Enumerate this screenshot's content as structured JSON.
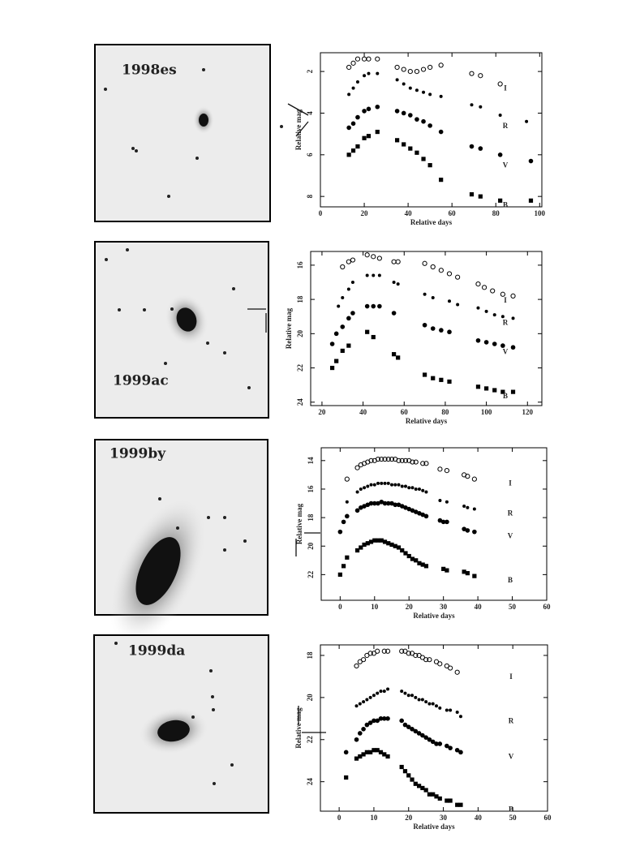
{
  "images": [
    {
      "label": "1998es"
    },
    {
      "label": "1999ac"
    },
    {
      "label": "1999by"
    },
    {
      "label": "1999da"
    }
  ],
  "chart_data": [
    {
      "type": "scatter",
      "xlabel": "Relative days",
      "ylabel": "Relative mag",
      "xlim": [
        0,
        101
      ],
      "ylim": [
        1.1,
        8.5
      ],
      "y_inverted": true,
      "xticks": [
        0,
        20,
        40,
        60,
        80,
        100
      ],
      "yticks": [
        2,
        4,
        6,
        8
      ],
      "series": [
        {
          "name": "I",
          "color": "#000000",
          "marker": "circle-open",
          "x": [
            13,
            15,
            17,
            20,
            22,
            26,
            35,
            38,
            41,
            44,
            47,
            50,
            55,
            69,
            73,
            82
          ],
          "values": [
            1.8,
            1.6,
            1.4,
            1.4,
            1.4,
            1.4,
            1.8,
            1.9,
            2.0,
            2.0,
            1.9,
            1.8,
            1.7,
            2.1,
            2.2,
            2.6
          ]
        },
        {
          "name": "R",
          "color": "#000000",
          "marker": "dot",
          "x": [
            13,
            15,
            17,
            20,
            22,
            26,
            35,
            38,
            41,
            44,
            47,
            50,
            55,
            69,
            73,
            82,
            94
          ],
          "values": [
            3.1,
            2.8,
            2.5,
            2.2,
            2.1,
            2.1,
            2.4,
            2.6,
            2.8,
            2.9,
            3.0,
            3.1,
            3.2,
            3.6,
            3.7,
            4.1,
            4.4
          ]
        },
        {
          "name": "V",
          "color": "#000000",
          "marker": "circle",
          "x": [
            13,
            15,
            17,
            20,
            22,
            26,
            35,
            38,
            41,
            44,
            47,
            50,
            55,
            69,
            73,
            82,
            96
          ],
          "values": [
            4.7,
            4.5,
            4.2,
            3.9,
            3.8,
            3.7,
            3.9,
            4.0,
            4.1,
            4.3,
            4.4,
            4.6,
            4.9,
            5.6,
            5.7,
            6.0,
            6.3
          ]
        },
        {
          "name": "B",
          "color": "#000000",
          "marker": "square",
          "x": [
            13,
            15,
            17,
            20,
            22,
            26,
            35,
            38,
            41,
            44,
            47,
            50,
            55,
            69,
            73,
            82,
            96
          ],
          "values": [
            6.0,
            5.8,
            5.6,
            5.2,
            5.1,
            4.9,
            5.3,
            5.5,
            5.7,
            5.9,
            6.2,
            6.5,
            7.2,
            7.9,
            8.0,
            8.2,
            8.2
          ]
        }
      ]
    },
    {
      "type": "scatter",
      "xlabel": "Relative days",
      "ylabel": "Relative mag",
      "xlim": [
        14.5,
        127
      ],
      "ylim": [
        15.2,
        24.2
      ],
      "y_inverted": true,
      "xticks": [
        20,
        40,
        60,
        80,
        100,
        120
      ],
      "yticks": [
        16,
        18,
        20,
        22,
        24
      ],
      "series": [
        {
          "name": "I",
          "color": "#000000",
          "marker": "circle-open",
          "x": [
            30,
            33,
            35,
            42,
            45,
            48,
            55,
            57,
            70,
            74,
            78,
            82,
            86,
            96,
            99,
            103,
            108,
            113
          ],
          "values": [
            16.1,
            15.8,
            15.7,
            15.4,
            15.5,
            15.6,
            15.8,
            15.8,
            15.9,
            16.1,
            16.3,
            16.5,
            16.7,
            17.1,
            17.3,
            17.5,
            17.7,
            17.8
          ]
        },
        {
          "name": "R",
          "color": "#000000",
          "marker": "dot",
          "x": [
            28,
            30,
            33,
            35,
            42,
            45,
            48,
            55,
            57,
            70,
            74,
            82,
            86,
            96,
            100,
            104,
            108,
            113
          ],
          "values": [
            18.4,
            17.9,
            17.4,
            17.0,
            16.6,
            16.6,
            16.6,
            17.0,
            17.1,
            17.7,
            17.9,
            18.1,
            18.3,
            18.5,
            18.7,
            18.9,
            19.0,
            19.1
          ]
        },
        {
          "name": "V",
          "color": "#000000",
          "marker": "circle",
          "x": [
            25,
            27,
            30,
            33,
            35,
            42,
            45,
            48,
            55,
            70,
            74,
            78,
            82,
            96,
            100,
            104,
            108,
            113
          ],
          "values": [
            20.6,
            20.0,
            19.6,
            19.1,
            18.8,
            18.4,
            18.4,
            18.4,
            18.8,
            19.5,
            19.7,
            19.8,
            19.9,
            20.4,
            20.5,
            20.6,
            20.7,
            20.8
          ]
        },
        {
          "name": "B",
          "color": "#000000",
          "marker": "square",
          "x": [
            25,
            27,
            30,
            33,
            42,
            45,
            55,
            57,
            70,
            74,
            78,
            82,
            96,
            100,
            104,
            108,
            113
          ],
          "values": [
            22.0,
            21.6,
            21.0,
            20.7,
            19.9,
            20.2,
            21.2,
            21.4,
            22.4,
            22.6,
            22.7,
            22.8,
            23.1,
            23.2,
            23.3,
            23.4,
            23.4
          ]
        }
      ]
    },
    {
      "type": "scatter",
      "xlabel": "Relative days",
      "ylabel": "Relative mag",
      "xlim": [
        -5.5,
        60
      ],
      "ylim": [
        13.1,
        23.8
      ],
      "y_inverted": true,
      "xticks": [
        0,
        10,
        20,
        30,
        40,
        50,
        60
      ],
      "yticks": [
        14,
        16,
        18,
        20,
        22
      ],
      "series": [
        {
          "name": "I",
          "color": "#000000",
          "marker": "circle-open",
          "x": [
            2,
            5,
            6,
            7,
            8,
            9,
            10,
            11,
            12,
            13,
            14,
            15,
            16,
            17,
            18,
            19,
            20,
            21,
            22,
            24,
            25,
            29,
            31,
            36,
            37,
            39
          ],
          "values": [
            15.3,
            14.5,
            14.3,
            14.2,
            14.1,
            14.0,
            14.0,
            13.9,
            13.9,
            13.9,
            13.9,
            13.9,
            13.9,
            14.0,
            14.0,
            14.0,
            14.0,
            14.1,
            14.1,
            14.2,
            14.2,
            14.6,
            14.7,
            15.0,
            15.1,
            15.3
          ]
        },
        {
          "name": "R",
          "color": "#000000",
          "marker": "dot",
          "x": [
            2,
            5,
            6,
            7,
            8,
            9,
            10,
            11,
            12,
            13,
            14,
            15,
            16,
            17,
            18,
            19,
            20,
            21,
            22,
            23,
            24,
            25,
            29,
            31,
            36,
            37,
            39
          ],
          "values": [
            16.9,
            16.2,
            16.0,
            15.9,
            15.8,
            15.7,
            15.7,
            15.6,
            15.6,
            15.6,
            15.6,
            15.7,
            15.7,
            15.7,
            15.8,
            15.8,
            15.9,
            15.9,
            16.0,
            16.0,
            16.1,
            16.2,
            16.8,
            16.9,
            17.2,
            17.3,
            17.4
          ]
        },
        {
          "name": "V",
          "color": "#000000",
          "marker": "circle",
          "x": [
            0,
            1,
            2,
            5,
            6,
            7,
            8,
            9,
            10,
            11,
            12,
            13,
            14,
            15,
            16,
            17,
            18,
            19,
            20,
            21,
            22,
            23,
            24,
            25,
            29,
            30,
            31,
            36,
            37,
            39
          ],
          "values": [
            19.0,
            18.3,
            17.9,
            17.5,
            17.3,
            17.2,
            17.1,
            17.0,
            17.0,
            17.0,
            16.9,
            17.0,
            17.0,
            17.0,
            17.1,
            17.1,
            17.2,
            17.3,
            17.4,
            17.5,
            17.6,
            17.7,
            17.8,
            17.9,
            18.2,
            18.3,
            18.3,
            18.8,
            18.9,
            19.0
          ]
        },
        {
          "name": "B",
          "color": "#000000",
          "marker": "square",
          "x": [
            0,
            1,
            2,
            5,
            6,
            7,
            8,
            9,
            10,
            11,
            12,
            13,
            14,
            15,
            16,
            17,
            18,
            19,
            20,
            21,
            22,
            23,
            24,
            25,
            30,
            31,
            36,
            37,
            39
          ],
          "values": [
            22.0,
            21.4,
            20.8,
            20.3,
            20.1,
            19.9,
            19.8,
            19.7,
            19.6,
            19.6,
            19.6,
            19.7,
            19.8,
            19.9,
            20.0,
            20.1,
            20.3,
            20.5,
            20.7,
            20.9,
            21.0,
            21.2,
            21.3,
            21.4,
            21.6,
            21.7,
            21.8,
            21.9,
            22.1
          ]
        }
      ]
    },
    {
      "type": "scatter",
      "xlabel": "Relative days",
      "ylabel": "Relative mag",
      "xlim": [
        -5.4,
        60
      ],
      "ylim": [
        17.5,
        25.4
      ],
      "y_inverted": true,
      "xticks": [
        0,
        10,
        20,
        30,
        40,
        50,
        60
      ],
      "yticks": [
        18,
        20,
        22,
        24
      ],
      "series": [
        {
          "name": "I",
          "color": "#000000",
          "marker": "circle-open",
          "x": [
            5,
            6,
            7,
            8,
            9,
            10,
            11,
            13,
            14,
            18,
            19,
            20,
            21,
            22,
            23,
            24,
            25,
            26,
            28,
            29,
            31,
            32,
            34
          ],
          "values": [
            18.5,
            18.3,
            18.2,
            18.0,
            17.9,
            17.9,
            17.8,
            17.8,
            17.8,
            17.8,
            17.8,
            17.9,
            17.9,
            18.0,
            18.0,
            18.1,
            18.2,
            18.2,
            18.3,
            18.4,
            18.5,
            18.6,
            18.8
          ]
        },
        {
          "name": "R",
          "color": "#000000",
          "marker": "dot",
          "x": [
            5,
            6,
            7,
            8,
            9,
            10,
            11,
            12,
            13,
            14,
            18,
            19,
            20,
            21,
            22,
            23,
            24,
            25,
            26,
            27,
            28,
            29,
            31,
            32,
            34,
            35
          ],
          "values": [
            20.4,
            20.3,
            20.2,
            20.1,
            20.0,
            19.9,
            19.8,
            19.7,
            19.7,
            19.6,
            19.7,
            19.8,
            19.9,
            19.9,
            20.0,
            20.1,
            20.1,
            20.2,
            20.3,
            20.3,
            20.4,
            20.5,
            20.6,
            20.6,
            20.7,
            20.9
          ]
        },
        {
          "name": "V",
          "color": "#000000",
          "marker": "circle",
          "x": [
            2,
            5,
            6,
            7,
            8,
            9,
            10,
            11,
            12,
            13,
            14,
            18,
            19,
            20,
            21,
            22,
            23,
            24,
            25,
            26,
            27,
            28,
            29,
            31,
            32,
            34,
            35
          ],
          "values": [
            22.6,
            22.0,
            21.7,
            21.5,
            21.3,
            21.2,
            21.1,
            21.1,
            21.0,
            21.0,
            21.0,
            21.1,
            21.3,
            21.4,
            21.5,
            21.6,
            21.7,
            21.8,
            21.9,
            22.0,
            22.1,
            22.2,
            22.2,
            22.3,
            22.4,
            22.5,
            22.6
          ]
        },
        {
          "name": "B",
          "color": "#000000",
          "marker": "square",
          "x": [
            2,
            5,
            6,
            7,
            8,
            9,
            10,
            11,
            12,
            13,
            14,
            18,
            19,
            20,
            21,
            22,
            23,
            24,
            25,
            26,
            27,
            28,
            29,
            31,
            32,
            34,
            35
          ],
          "values": [
            23.8,
            22.9,
            22.8,
            22.7,
            22.6,
            22.6,
            22.5,
            22.5,
            22.6,
            22.7,
            22.8,
            23.3,
            23.5,
            23.7,
            23.9,
            24.1,
            24.2,
            24.3,
            24.4,
            24.6,
            24.6,
            24.7,
            24.8,
            24.9,
            24.9,
            25.1,
            25.1
          ]
        }
      ]
    }
  ]
}
